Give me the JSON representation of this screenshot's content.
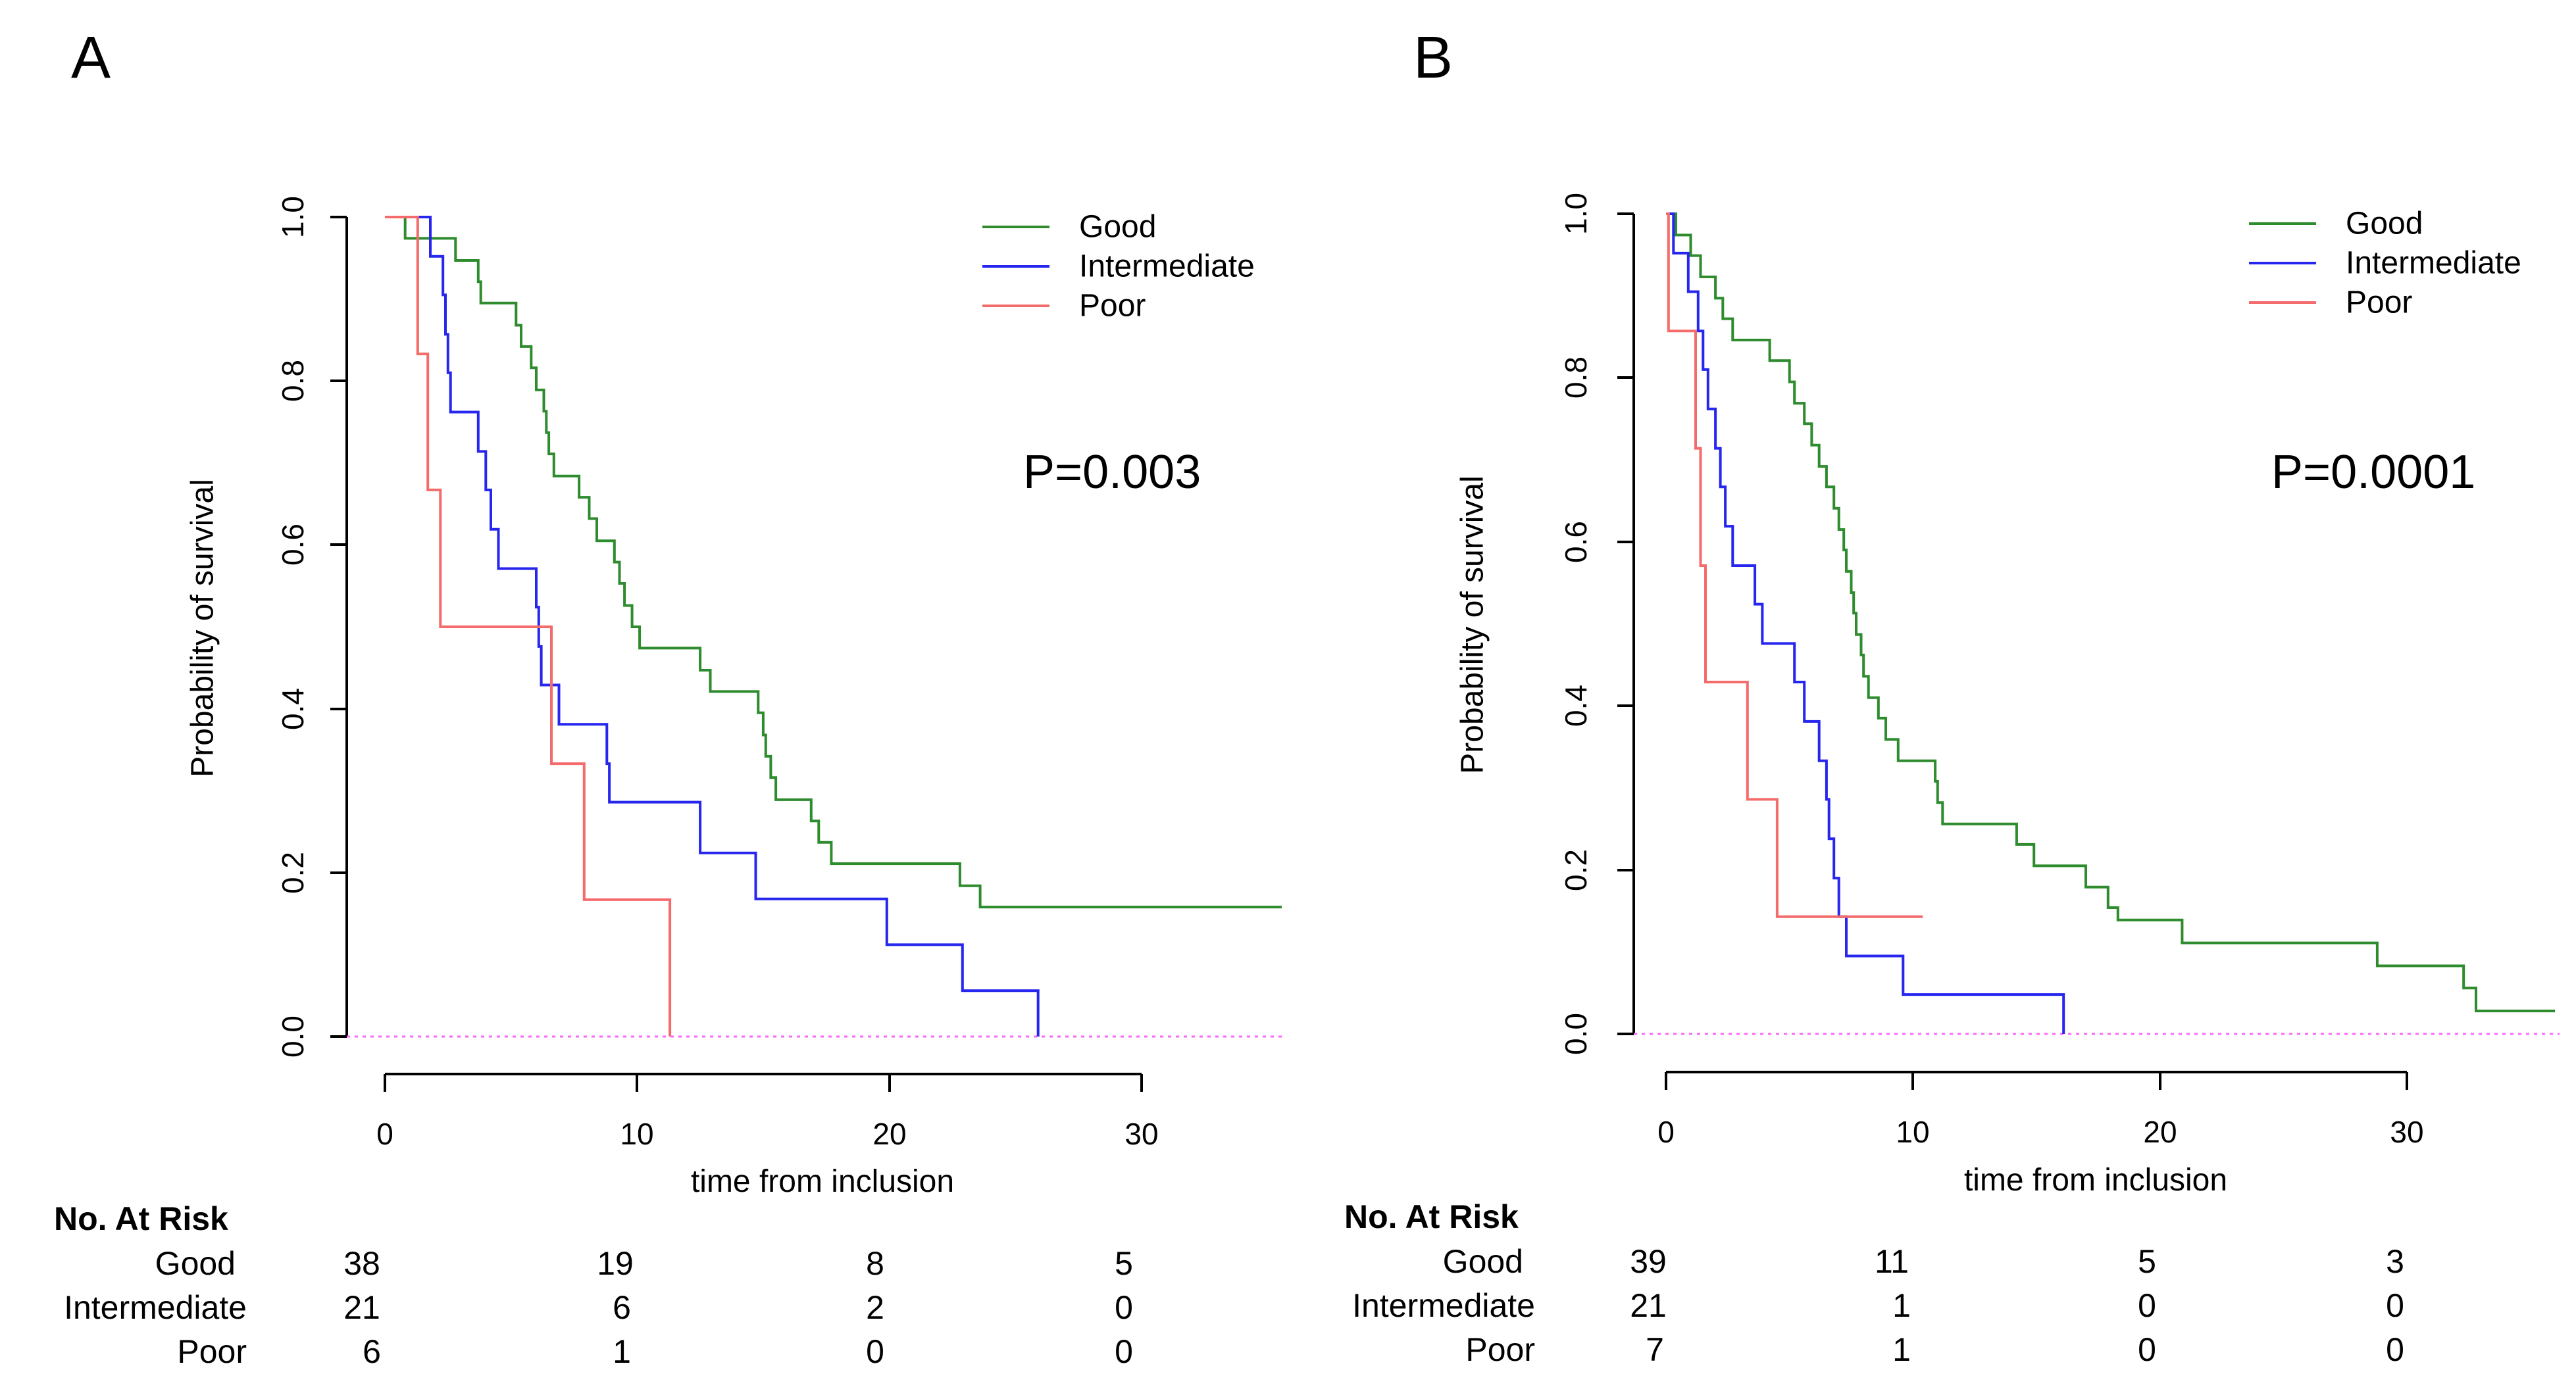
{
  "colors": {
    "Good": "#2e8b2e",
    "Intermediate": "#2626ee",
    "Poor": "#f46b6b"
  },
  "chart_data": [
    {
      "type": "line",
      "step": true,
      "panel_label": "A",
      "xlabel": "time from inclusion",
      "ylabel": "Probability of survival",
      "xlim": [
        0,
        36
      ],
      "ylim": [
        0,
        1
      ],
      "xticks": [
        0,
        10,
        20,
        30
      ],
      "yticks": [
        "0.0",
        "0.2",
        "0.4",
        "0.6",
        "0.8",
        "1.0"
      ],
      "annotation": "P=0.003",
      "legend_position": "top-right",
      "series": [
        {
          "name": "Good",
          "points": [
            [
              0,
              1.0
            ],
            [
              0.8,
              0.974
            ],
            [
              2.8,
              0.947
            ],
            [
              3.7,
              0.921
            ],
            [
              3.8,
              0.895
            ],
            [
              5.2,
              0.868
            ],
            [
              5.4,
              0.842
            ],
            [
              5.8,
              0.816
            ],
            [
              6.0,
              0.789
            ],
            [
              6.3,
              0.763
            ],
            [
              6.4,
              0.737
            ],
            [
              6.5,
              0.711
            ],
            [
              6.7,
              0.684
            ],
            [
              7.7,
              0.658
            ],
            [
              8.1,
              0.632
            ],
            [
              8.4,
              0.605
            ],
            [
              9.1,
              0.579
            ],
            [
              9.3,
              0.553
            ],
            [
              9.5,
              0.526
            ],
            [
              9.8,
              0.5
            ],
            [
              10.1,
              0.474
            ],
            [
              12.5,
              0.447
            ],
            [
              12.9,
              0.421
            ],
            [
              14.8,
              0.395
            ],
            [
              15.0,
              0.368
            ],
            [
              15.1,
              0.342
            ],
            [
              15.3,
              0.316
            ],
            [
              15.5,
              0.289
            ],
            [
              16.9,
              0.263
            ],
            [
              17.2,
              0.237
            ],
            [
              17.7,
              0.211
            ],
            [
              22.8,
              0.184
            ],
            [
              23.6,
              0.158
            ],
            [
              36.0,
              0.158
            ]
          ]
        },
        {
          "name": "Intermediate",
          "points": [
            [
              0,
              1.0
            ],
            [
              1.8,
              0.952
            ],
            [
              2.3,
              0.905
            ],
            [
              2.4,
              0.857
            ],
            [
              2.5,
              0.81
            ],
            [
              2.6,
              0.762
            ],
            [
              3.7,
              0.714
            ],
            [
              4.0,
              0.667
            ],
            [
              4.2,
              0.619
            ],
            [
              4.5,
              0.571
            ],
            [
              6.0,
              0.524
            ],
            [
              6.1,
              0.476
            ],
            [
              6.2,
              0.429
            ],
            [
              6.9,
              0.381
            ],
            [
              8.8,
              0.333
            ],
            [
              8.9,
              0.286
            ],
            [
              12.5,
              0.224
            ],
            [
              14.7,
              0.168
            ],
            [
              19.9,
              0.112
            ],
            [
              22.9,
              0.056
            ],
            [
              25.9,
              0.0
            ]
          ]
        },
        {
          "name": "Poor",
          "points": [
            [
              0,
              1.0
            ],
            [
              1.3,
              0.833
            ],
            [
              1.7,
              0.667
            ],
            [
              2.2,
              0.5
            ],
            [
              6.6,
              0.333
            ],
            [
              7.9,
              0.167
            ],
            [
              11.3,
              0.0
            ]
          ]
        }
      ],
      "at_risk": {
        "title": "No. At Risk",
        "times": [
          0,
          10,
          20,
          30
        ],
        "rows": [
          {
            "label": "Good",
            "values": [
              "38",
              "19",
              "8",
              "5"
            ]
          },
          {
            "label": "Intermediate",
            "values": [
              "21",
              "6",
              "2",
              "0"
            ]
          },
          {
            "label": "Poor",
            "values": [
              "6",
              "1",
              "0",
              "0"
            ]
          }
        ]
      }
    },
    {
      "type": "line",
      "step": true,
      "panel_label": "B",
      "xlabel": "time from inclusion",
      "ylabel": "Probability of survival",
      "xlim": [
        0,
        36
      ],
      "ylim": [
        0,
        1
      ],
      "xticks": [
        0,
        10,
        20,
        30
      ],
      "yticks": [
        "0.0",
        "0.2",
        "0.4",
        "0.6",
        "0.8",
        "1.0"
      ],
      "annotation": "P=0.0001",
      "legend_position": "top-right",
      "series": [
        {
          "name": "Good",
          "points": [
            [
              0,
              1.0
            ],
            [
              0.4,
              0.974
            ],
            [
              1.0,
              0.949
            ],
            [
              1.4,
              0.923
            ],
            [
              2.0,
              0.897
            ],
            [
              2.3,
              0.872
            ],
            [
              2.7,
              0.846
            ],
            [
              4.2,
              0.821
            ],
            [
              5.0,
              0.795
            ],
            [
              5.2,
              0.769
            ],
            [
              5.6,
              0.744
            ],
            [
              5.9,
              0.718
            ],
            [
              6.2,
              0.692
            ],
            [
              6.5,
              0.667
            ],
            [
              6.8,
              0.641
            ],
            [
              7.0,
              0.615
            ],
            [
              7.2,
              0.59
            ],
            [
              7.3,
              0.564
            ],
            [
              7.5,
              0.538
            ],
            [
              7.6,
              0.513
            ],
            [
              7.7,
              0.487
            ],
            [
              7.9,
              0.462
            ],
            [
              8.0,
              0.436
            ],
            [
              8.2,
              0.41
            ],
            [
              8.6,
              0.385
            ],
            [
              8.9,
              0.359
            ],
            [
              9.4,
              0.333
            ],
            [
              10.9,
              0.308
            ],
            [
              11.0,
              0.282
            ],
            [
              11.2,
              0.256
            ],
            [
              14.2,
              0.231
            ],
            [
              14.9,
              0.205
            ],
            [
              17.0,
              0.179
            ],
            [
              17.9,
              0.154
            ],
            [
              18.3,
              0.139
            ],
            [
              20.9,
              0.111
            ],
            [
              28.8,
              0.083
            ],
            [
              32.3,
              0.056
            ],
            [
              32.8,
              0.028
            ],
            [
              36.0,
              0.028
            ]
          ]
        },
        {
          "name": "Intermediate",
          "points": [
            [
              0,
              1.0
            ],
            [
              0.3,
              0.952
            ],
            [
              0.9,
              0.905
            ],
            [
              1.3,
              0.857
            ],
            [
              1.5,
              0.81
            ],
            [
              1.7,
              0.762
            ],
            [
              2.0,
              0.714
            ],
            [
              2.2,
              0.667
            ],
            [
              2.4,
              0.619
            ],
            [
              2.7,
              0.571
            ],
            [
              3.6,
              0.524
            ],
            [
              3.9,
              0.476
            ],
            [
              5.2,
              0.429
            ],
            [
              5.6,
              0.381
            ],
            [
              6.2,
              0.333
            ],
            [
              6.5,
              0.286
            ],
            [
              6.6,
              0.238
            ],
            [
              6.8,
              0.19
            ],
            [
              7.0,
              0.143
            ],
            [
              7.3,
              0.095
            ],
            [
              9.6,
              0.048
            ],
            [
              16.1,
              0.0
            ]
          ]
        },
        {
          "name": "Poor",
          "points": [
            [
              0,
              1.0
            ],
            [
              0.1,
              0.857
            ],
            [
              1.2,
              0.714
            ],
            [
              1.4,
              0.571
            ],
            [
              1.6,
              0.429
            ],
            [
              3.3,
              0.286
            ],
            [
              4.5,
              0.143
            ],
            [
              10.4,
              0.143
            ]
          ]
        }
      ],
      "at_risk": {
        "title": "No. At Risk",
        "times": [
          0,
          10,
          20,
          30
        ],
        "rows": [
          {
            "label": "Good",
            "values": [
              "39",
              "11",
              "5",
              "3"
            ]
          },
          {
            "label": "Intermediate",
            "values": [
              "21",
              "1",
              "0",
              "0"
            ]
          },
          {
            "label": "Poor",
            "values": [
              "7",
              "1",
              "0",
              "0"
            ]
          }
        ]
      }
    }
  ]
}
